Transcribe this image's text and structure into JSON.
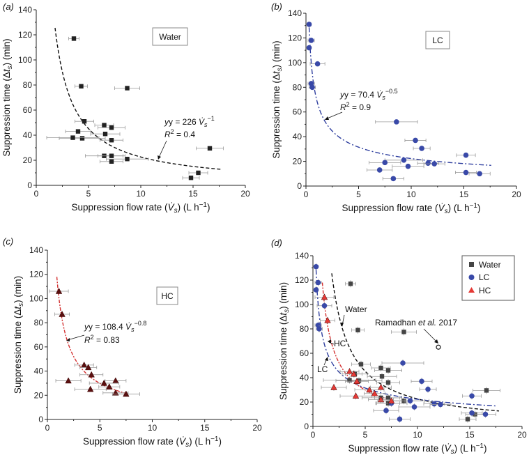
{
  "chart_data": [
    {
      "panel": "(a)",
      "type": "scatter",
      "box_label": "Water",
      "xlabel_text": "Suppression flow rate (",
      "xlabel_var": "V",
      "xlabel_sub": "s",
      "xlabel_unit": ") (L h",
      "xlabel_exp": "−1",
      "xlabel_end": ")",
      "ylabel_text": "Suppression time (Δ",
      "ylabel_var": "t",
      "ylabel_sub": "s",
      "ylabel_end": ") (min)",
      "xlim": [
        0,
        20
      ],
      "ylim": [
        0,
        140
      ],
      "xticks": [
        "0",
        "5",
        "10",
        "15",
        "20"
      ],
      "yticks": [
        "0",
        "20",
        "40",
        "60",
        "80",
        "100",
        "120",
        "140"
      ],
      "marker": "square",
      "color": "#222222",
      "points": [
        {
          "x": 3.6,
          "y": 117,
          "xerr": 0.5
        },
        {
          "x": 4.3,
          "y": 79,
          "xerr": 0.6
        },
        {
          "x": 8.7,
          "y": 77.5,
          "xerr": 1.2
        },
        {
          "x": 4.6,
          "y": 51,
          "xerr": 0.9
        },
        {
          "x": 6.5,
          "y": 48,
          "xerr": 0.9
        },
        {
          "x": 7.2,
          "y": 46,
          "xerr": 1.3
        },
        {
          "x": 4.0,
          "y": 43,
          "xerr": 1.2
        },
        {
          "x": 6.6,
          "y": 41,
          "xerr": 1.4
        },
        {
          "x": 4.4,
          "y": 37.5,
          "xerr": 2.2
        },
        {
          "x": 3.5,
          "y": 38,
          "xerr": 2.5
        },
        {
          "x": 7.2,
          "y": 36,
          "xerr": 1.1
        },
        {
          "x": 16.6,
          "y": 29.5,
          "xerr": 1.3
        },
        {
          "x": 6.5,
          "y": 23.5,
          "xerr": 1.8
        },
        {
          "x": 7.2,
          "y": 23.5,
          "xerr": 1.3
        },
        {
          "x": 8.7,
          "y": 21,
          "xerr": 2.0
        },
        {
          "x": 7.2,
          "y": 19,
          "xerr": 1.1
        },
        {
          "x": 15.5,
          "y": 10,
          "xerr": 0.9
        },
        {
          "x": 14.8,
          "y": 6,
          "xerr": 0.8
        }
      ],
      "fit": {
        "a": 226,
        "b": -1,
        "xmin": 1.8,
        "xmax": 17.8
      },
      "equation_y": "y = 226 ",
      "equation_exp": "−1",
      "r2": " = 0.4"
    },
    {
      "panel": "(b)",
      "type": "scatter",
      "box_label": "LC",
      "xlim": [
        0,
        20
      ],
      "ylim": [
        0,
        140
      ],
      "xticks": [
        "0",
        "5",
        "10",
        "15",
        "20"
      ],
      "yticks": [
        "0",
        "20",
        "40",
        "60",
        "80",
        "100",
        "120",
        "140"
      ],
      "marker": "circle",
      "color": "#3949a8",
      "points": [
        {
          "x": 0.3,
          "y": 131,
          "xerr": 0.2
        },
        {
          "x": 0.5,
          "y": 118,
          "xerr": 0.3
        },
        {
          "x": 0.3,
          "y": 112,
          "xerr": 0.2
        },
        {
          "x": 1.1,
          "y": 99,
          "xerr": 0.7
        },
        {
          "x": 0.5,
          "y": 83,
          "xerr": 0.3
        },
        {
          "x": 0.6,
          "y": 80,
          "xerr": 0.3
        },
        {
          "x": 8.6,
          "y": 52,
          "xerr": 2.0
        },
        {
          "x": 10.4,
          "y": 37,
          "xerr": 1.0
        },
        {
          "x": 11.0,
          "y": 30.5,
          "xerr": 0.8
        },
        {
          "x": 15.2,
          "y": 25,
          "xerr": 0.9
        },
        {
          "x": 9.3,
          "y": 21,
          "xerr": 1.8
        },
        {
          "x": 7.5,
          "y": 19,
          "xerr": 1.5
        },
        {
          "x": 11.6,
          "y": 18.5,
          "xerr": 1.0
        },
        {
          "x": 12.2,
          "y": 18,
          "xerr": 1.0
        },
        {
          "x": 9.7,
          "y": 16,
          "xerr": 1.5
        },
        {
          "x": 7.0,
          "y": 13,
          "xerr": 1.2
        },
        {
          "x": 15.2,
          "y": 11,
          "xerr": 1.0
        },
        {
          "x": 16.5,
          "y": 10,
          "xerr": 1.0
        },
        {
          "x": 8.3,
          "y": 6,
          "xerr": 1.0
        }
      ],
      "fit": {
        "a": 70.4,
        "b": -0.5,
        "xmin": 0.3,
        "xmax": 17.6
      },
      "equation_y": "y = 70.4 ",
      "equation_exp": "−0.5",
      "r2": " = 0.9"
    },
    {
      "panel": "(c)",
      "type": "scatter",
      "box_label": "HC",
      "xlim": [
        0,
        20
      ],
      "ylim": [
        0,
        140
      ],
      "xticks": [
        "0",
        "5",
        "10",
        "15",
        "20"
      ],
      "yticks": [
        "0",
        "20",
        "40",
        "60",
        "80",
        "100",
        "120",
        "140"
      ],
      "marker": "triangle",
      "color": "#5a1010",
      "points": [
        {
          "x": 1.1,
          "y": 106,
          "xerr": 0.9
        },
        {
          "x": 1.4,
          "y": 87,
          "xerr": 0.7
        },
        {
          "x": 3.5,
          "y": 45,
          "xerr": 0.9
        },
        {
          "x": 3.9,
          "y": 43,
          "xerr": 0.8
        },
        {
          "x": 4.2,
          "y": 37,
          "xerr": 1.1
        },
        {
          "x": 6.5,
          "y": 32,
          "xerr": 1.0
        },
        {
          "x": 2.0,
          "y": 32,
          "xerr": 1.2
        },
        {
          "x": 5.4,
          "y": 30,
          "xerr": 1.4
        },
        {
          "x": 5.9,
          "y": 27,
          "xerr": 1.0
        },
        {
          "x": 4.1,
          "y": 25,
          "xerr": 1.5
        },
        {
          "x": 6.5,
          "y": 22,
          "xerr": 1.2
        },
        {
          "x": 7.5,
          "y": 21,
          "xerr": 1.3
        }
      ],
      "fit": {
        "a": 108.4,
        "b": -0.8,
        "xmin": 0.9,
        "xmax": 7.7
      },
      "equation_y": "y = 108.4 ",
      "equation_exp": "−0.8",
      "r2": " = 0.83"
    },
    {
      "panel": "(d)",
      "type": "scatter",
      "xlim": [
        0,
        20
      ],
      "ylim": [
        0,
        140
      ],
      "xticks": [
        "0",
        "5",
        "10",
        "15",
        "20"
      ],
      "yticks": [
        "0",
        "20",
        "40",
        "60",
        "80",
        "100",
        "120",
        "140"
      ],
      "legend": [
        "Water",
        "LC",
        "HC"
      ],
      "legend_position": "top-right",
      "curve_labels": [
        "Water",
        "HC",
        "LC"
      ],
      "annotation_pre": "Ramadhan ",
      "annotation_italic": "et al.",
      "annotation_post": " 2017",
      "annotation_point": {
        "x": 12,
        "y": 65
      }
    }
  ]
}
